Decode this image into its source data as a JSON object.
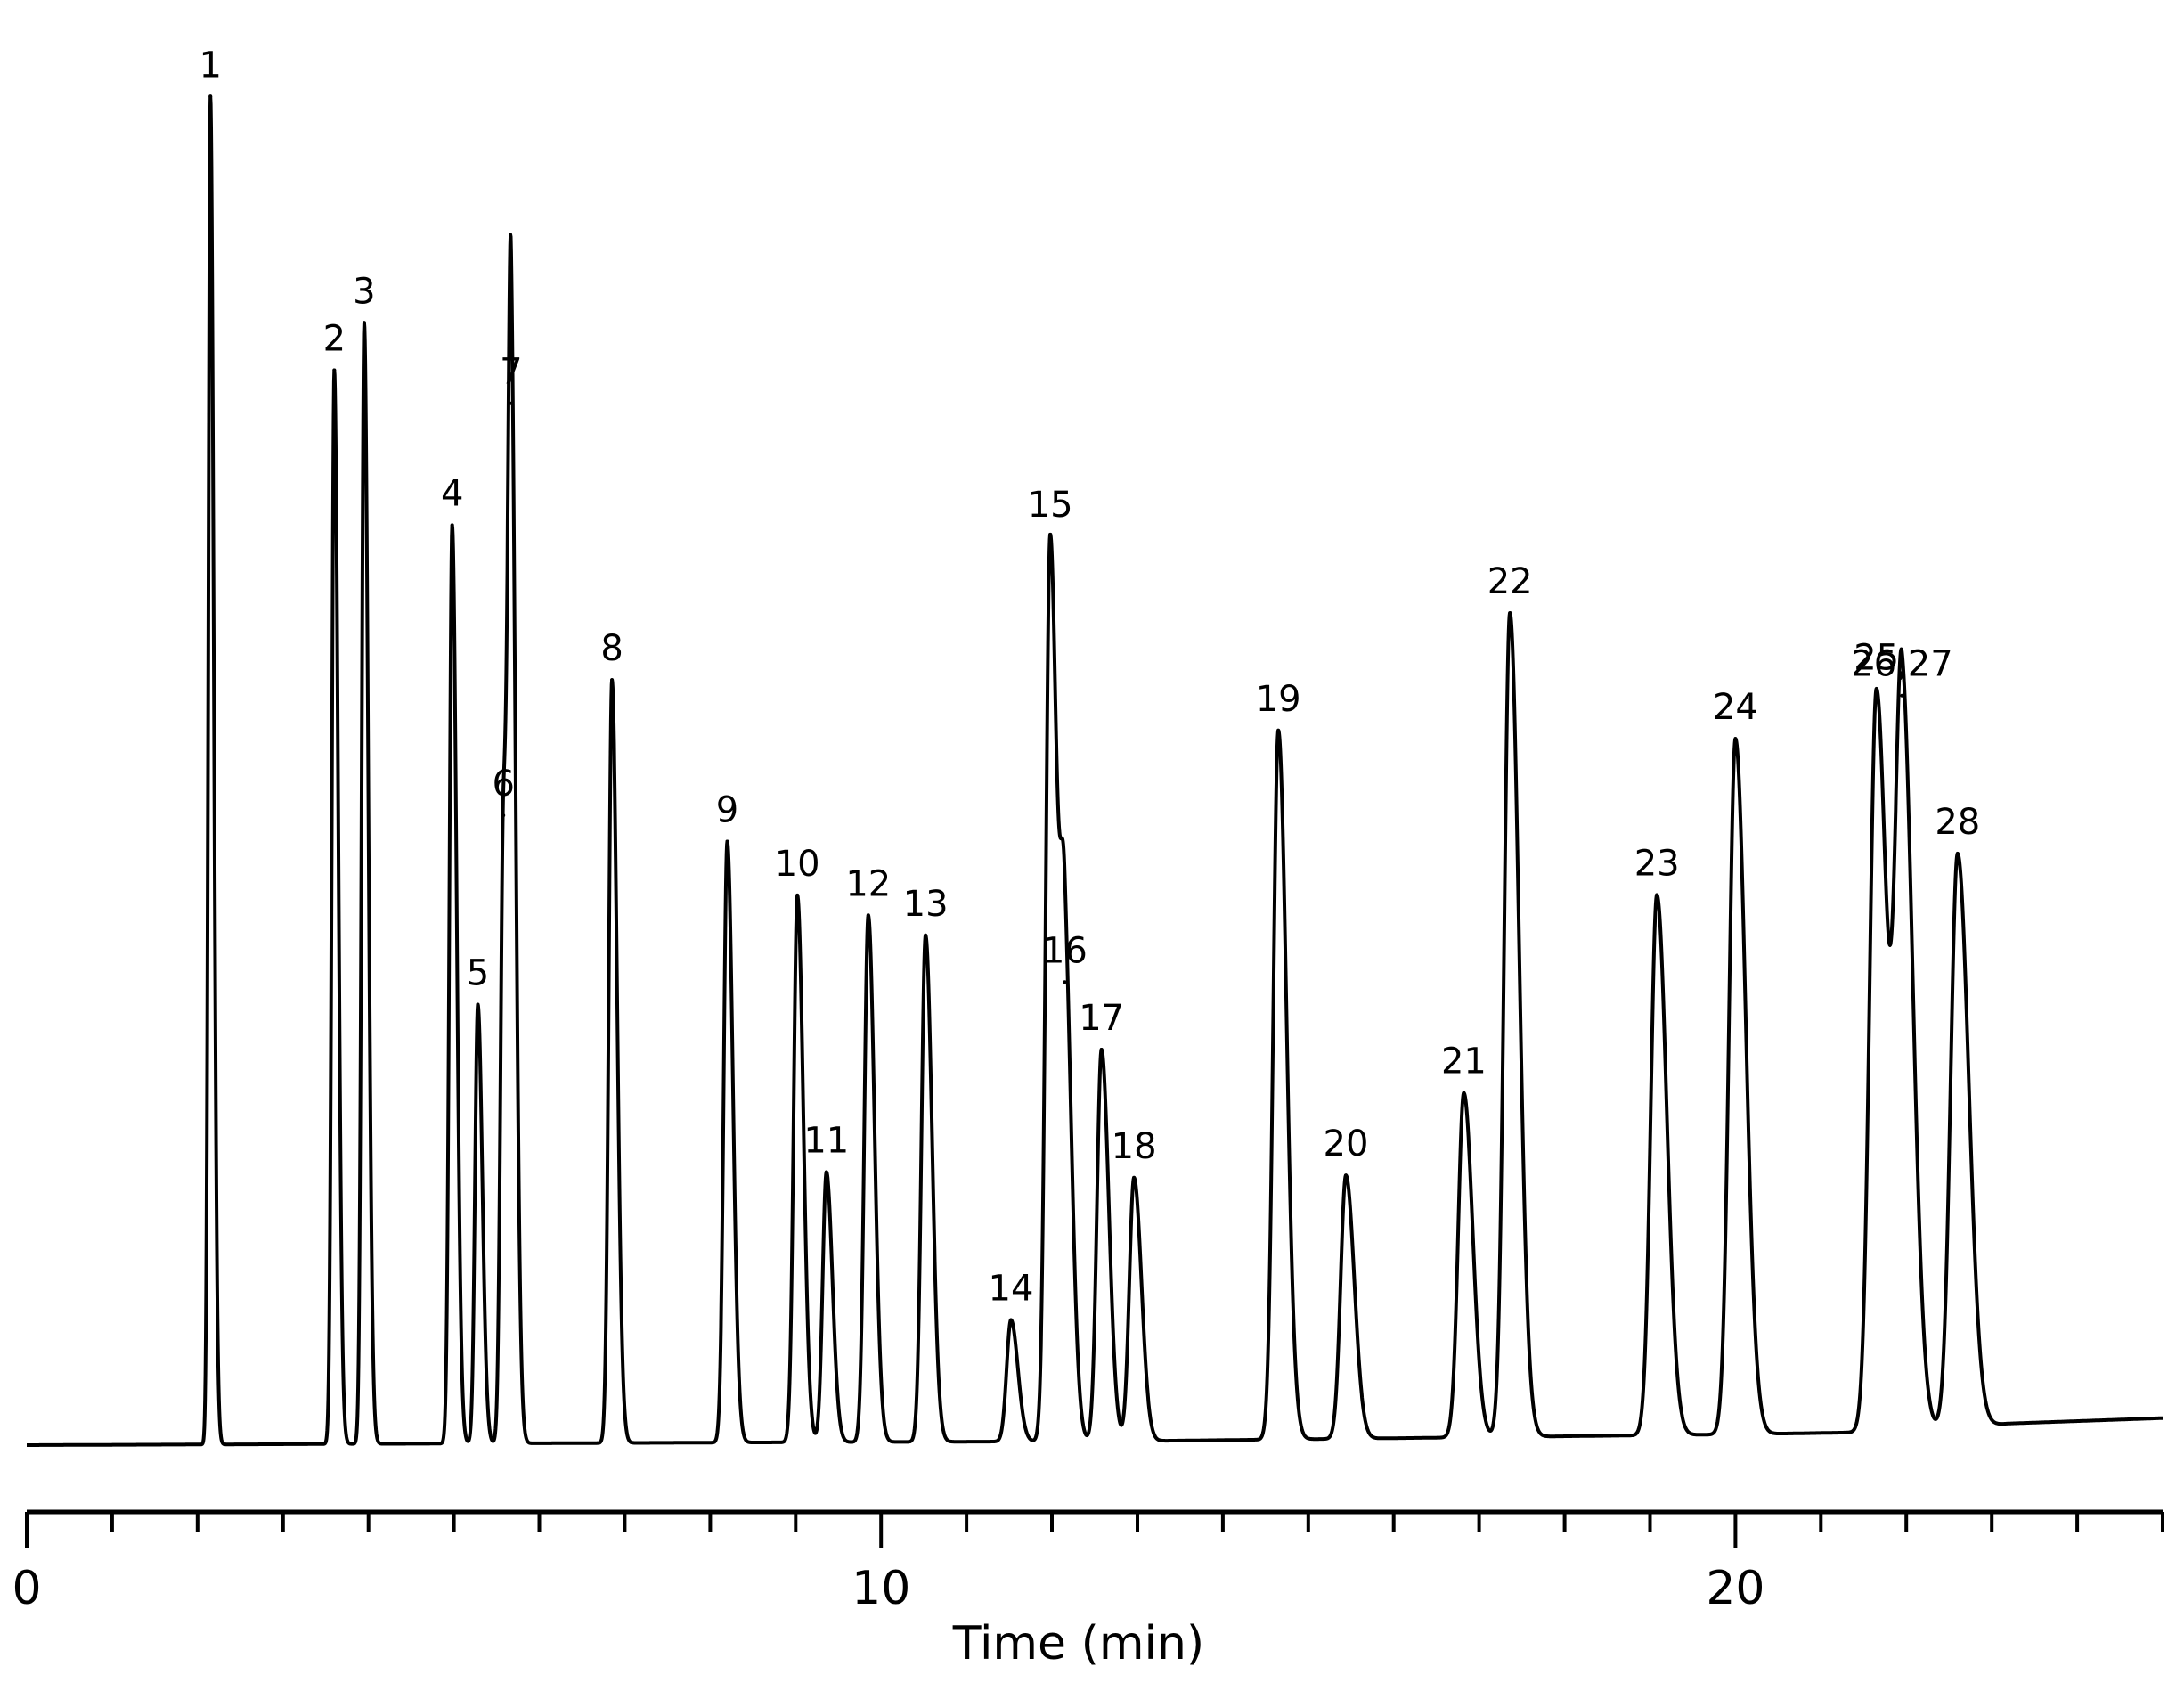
{
  "chart_data": {
    "type": "line",
    "title": "",
    "xlabel": "Time (min)",
    "ylabel": "",
    "xlim": [
      0,
      25
    ],
    "ylim": [
      0,
      1
    ],
    "major_ticks": [
      0,
      10,
      20
    ],
    "tick_labels": [
      "0",
      "10",
      "20"
    ],
    "minor_tick_step": 1,
    "grid": false,
    "line_color": "#000000",
    "baseline": [
      {
        "x": 0,
        "y": 0
      },
      {
        "x": 13,
        "y": 0.003
      },
      {
        "x": 20,
        "y": 0.008
      },
      {
        "x": 22,
        "y": 0.01
      },
      {
        "x": 23.2,
        "y": 0.016
      },
      {
        "x": 25,
        "y": 0.02
      }
    ],
    "peaks": [
      {
        "label": "1",
        "time": 2.15,
        "height": 0.998
      },
      {
        "label": "2",
        "time": 3.6,
        "height": 0.795
      },
      {
        "label": "3",
        "time": 3.95,
        "height": 0.83
      },
      {
        "label": "4",
        "time": 4.98,
        "height": 0.68
      },
      {
        "label": "5",
        "time": 5.28,
        "height": 0.325
      },
      {
        "label": "6",
        "time": 5.58,
        "height": 0.465
      },
      {
        "label": "7",
        "time": 5.67,
        "height": 0.77
      },
      {
        "label": "8",
        "time": 6.85,
        "height": 0.565
      },
      {
        "label": "9",
        "time": 8.2,
        "height": 0.445
      },
      {
        "label": "10",
        "time": 9.02,
        "height": 0.405
      },
      {
        "label": "11",
        "time": 9.36,
        "height": 0.2
      },
      {
        "label": "12",
        "time": 9.85,
        "height": 0.39
      },
      {
        "label": "13",
        "time": 10.52,
        "height": 0.375
      },
      {
        "label": "14",
        "time": 11.52,
        "height": 0.09
      },
      {
        "label": "15",
        "time": 11.98,
        "height": 0.67
      },
      {
        "label": "16",
        "time": 12.15,
        "height": 0.34
      },
      {
        "label": "17",
        "time": 12.58,
        "height": 0.29
      },
      {
        "label": "18",
        "time": 12.96,
        "height": 0.195
      },
      {
        "label": "19",
        "time": 14.65,
        "height": 0.525
      },
      {
        "label": "20",
        "time": 15.44,
        "height": 0.195
      },
      {
        "label": "21",
        "time": 16.82,
        "height": 0.255
      },
      {
        "label": "22",
        "time": 17.36,
        "height": 0.61
      },
      {
        "label": "23",
        "time": 19.08,
        "height": 0.4
      },
      {
        "label": "24",
        "time": 20.0,
        "height": 0.515
      },
      {
        "label": "25",
        "time": 21.65,
        "height": 0.55
      },
      {
        "label": "26,27",
        "time": 21.95,
        "height": 0.545
      },
      {
        "label": "28",
        "time": 22.6,
        "height": 0.425
      }
    ]
  }
}
